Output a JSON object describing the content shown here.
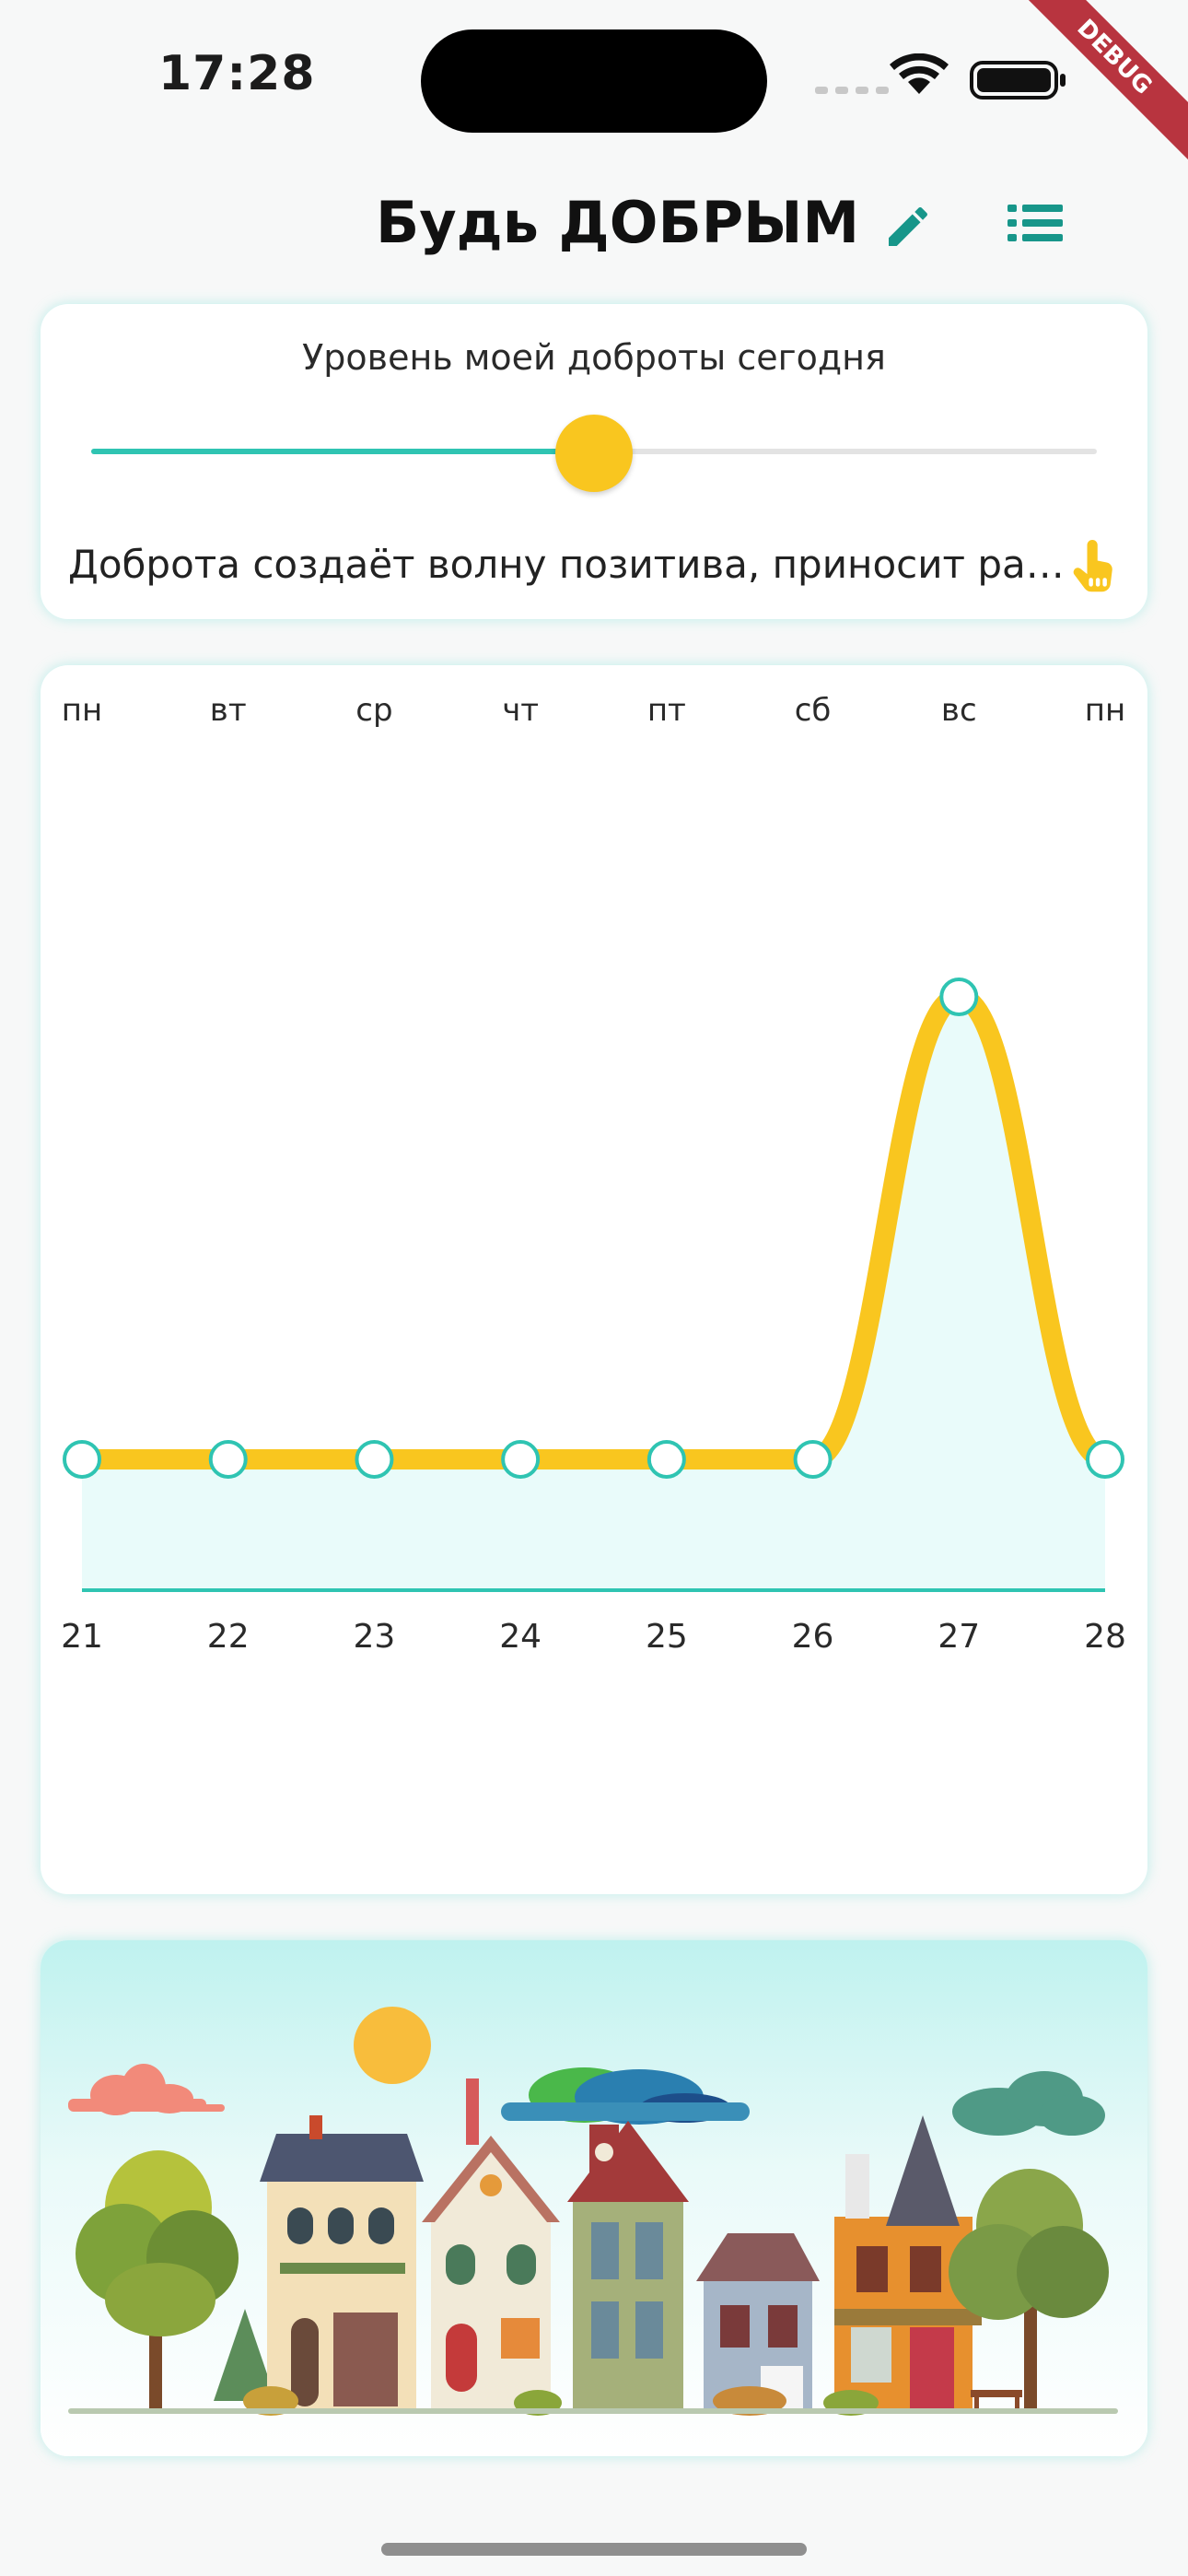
{
  "status_bar": {
    "time": "17:28",
    "debug_label": "DEBUG"
  },
  "header": {
    "title": "Будь ДОБРЫМ",
    "edit_icon": "pencil-icon",
    "list_icon": "list-icon",
    "accent_color": "#17968a"
  },
  "kindness_card": {
    "title": "Уровень моей доброты сегодня",
    "slider_value": 0.5,
    "quote": "Доброта создаёт волну позитива, приносит радость и вдохновляет других",
    "tap_icon": "hand-pointer-icon"
  },
  "chart_data": {
    "type": "area",
    "day_labels": [
      "пн",
      "вт",
      "ср",
      "чт",
      "пт",
      "сб",
      "вс",
      "пн"
    ],
    "categories": [
      "21",
      "22",
      "23",
      "24",
      "25",
      "26",
      "27",
      "28"
    ],
    "values": [
      0,
      0,
      0,
      0,
      0,
      0,
      0.5,
      0
    ],
    "ylim": [
      0,
      1
    ],
    "line_color": "#f9c61f",
    "fill_color": "#e9fbfa",
    "point_color": "#2fc4b2",
    "baseline_color": "#2fc4b2"
  },
  "illustration": {
    "description_icon": "town-houses-illustration"
  }
}
